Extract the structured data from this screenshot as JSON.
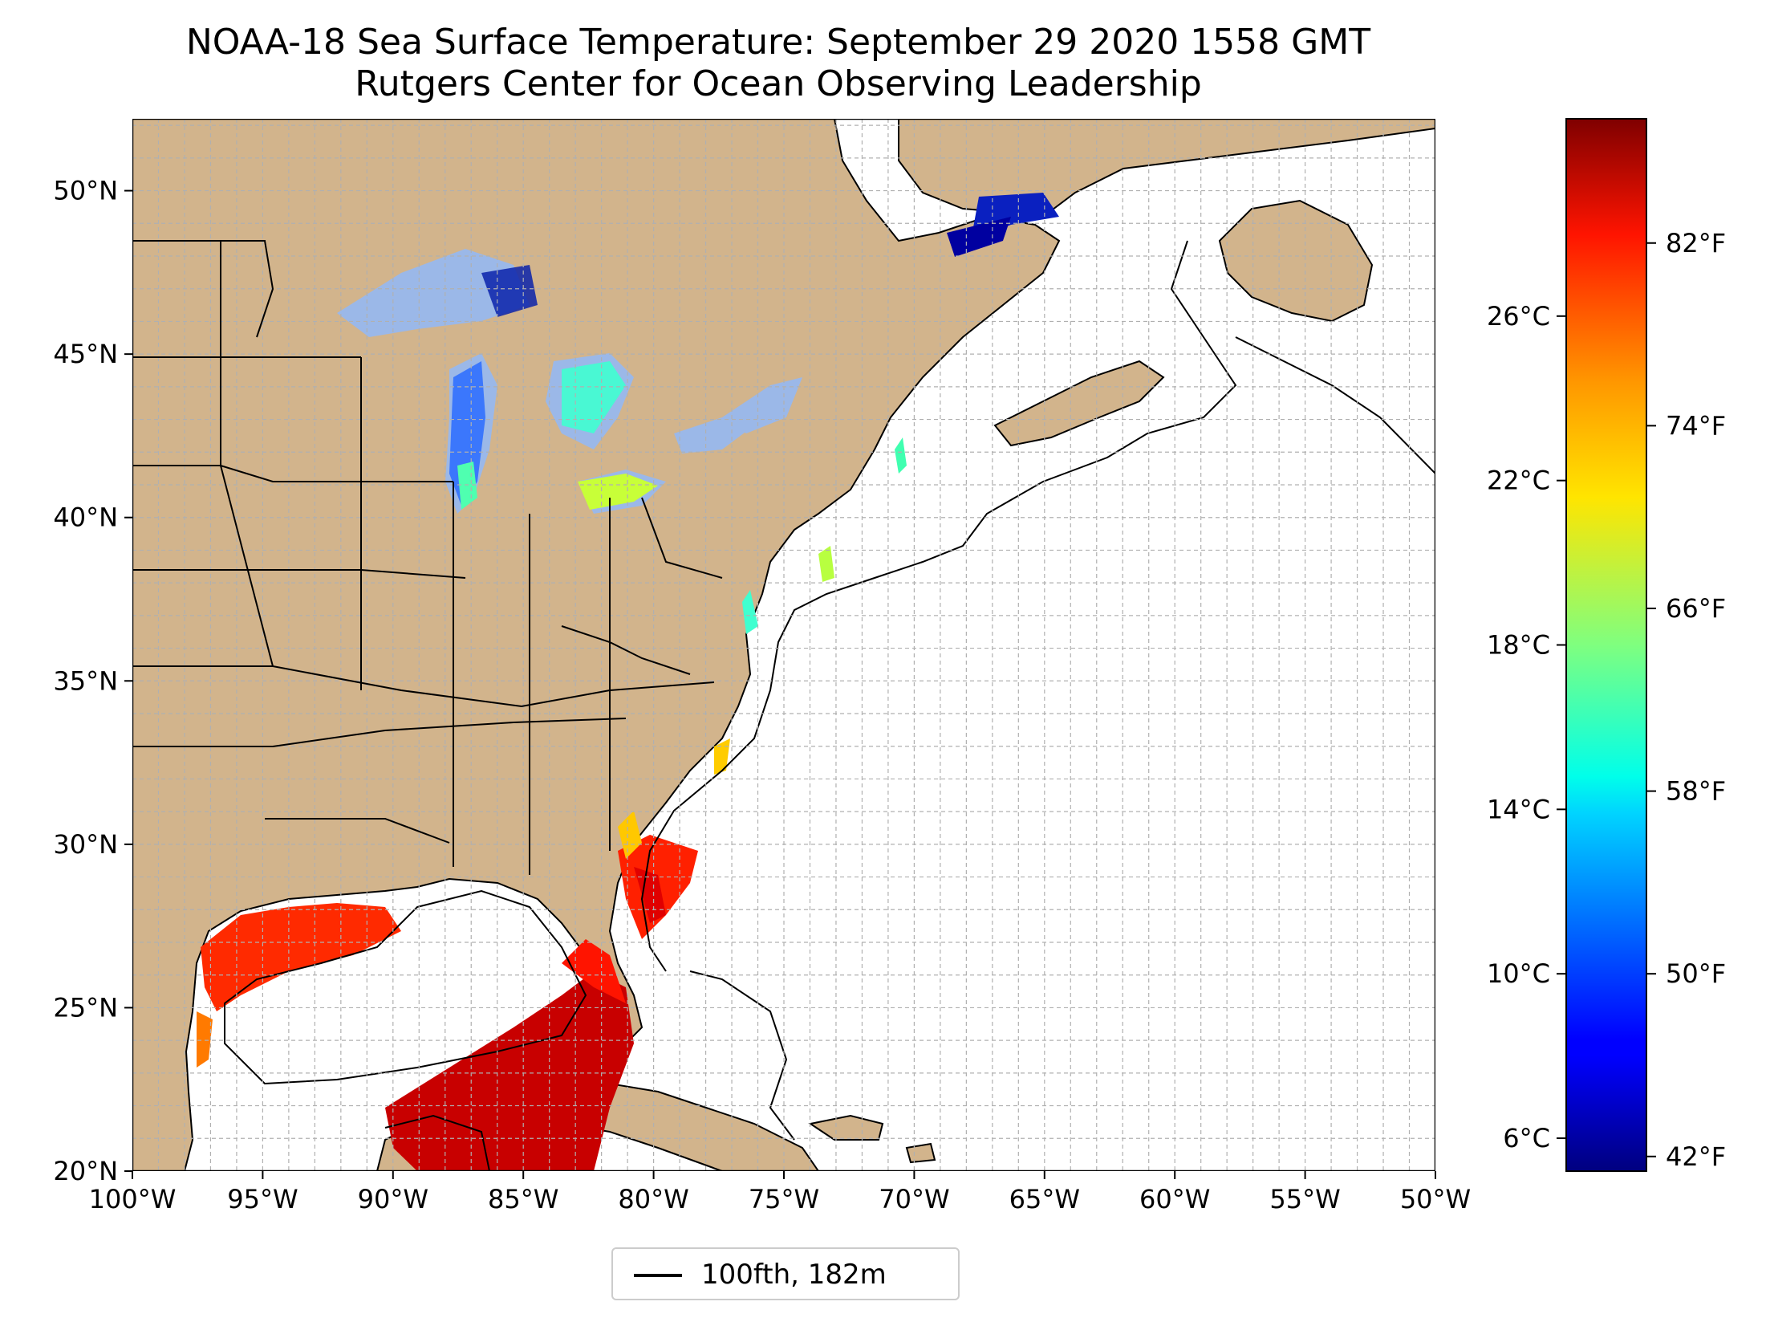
{
  "title": "NOAA-18 Sea Surface Temperature: September 29 2020 1558 GMT",
  "subtitle": "Rutgers Center for Ocean Observing Leadership",
  "map": {
    "lon_labels": [
      "100°W",
      "95°W",
      "90°W",
      "85°W",
      "80°W",
      "75°W",
      "70°W",
      "65°W",
      "60°W",
      "55°W",
      "50°W"
    ],
    "lat_labels": [
      "20°N",
      "25°N",
      "30°N",
      "35°N",
      "40°N",
      "45°N",
      "50°N"
    ],
    "land_color": "#d2b48c",
    "lake_color": "#9bb8e8",
    "ocean_color": "#ffffff"
  },
  "legend": {
    "label": "100fth, 182m",
    "line_color": "#000000"
  },
  "colorbar": {
    "colormap": "jet",
    "celsius_labels": [
      "26°C",
      "22°C",
      "18°C",
      "14°C",
      "10°C",
      "6°C"
    ],
    "fahrenheit_labels": [
      "82°F",
      "74°F",
      "66°F",
      "58°F",
      "50°F",
      "42°F"
    ],
    "min_c": 5.2,
    "max_c": 30.8
  }
}
